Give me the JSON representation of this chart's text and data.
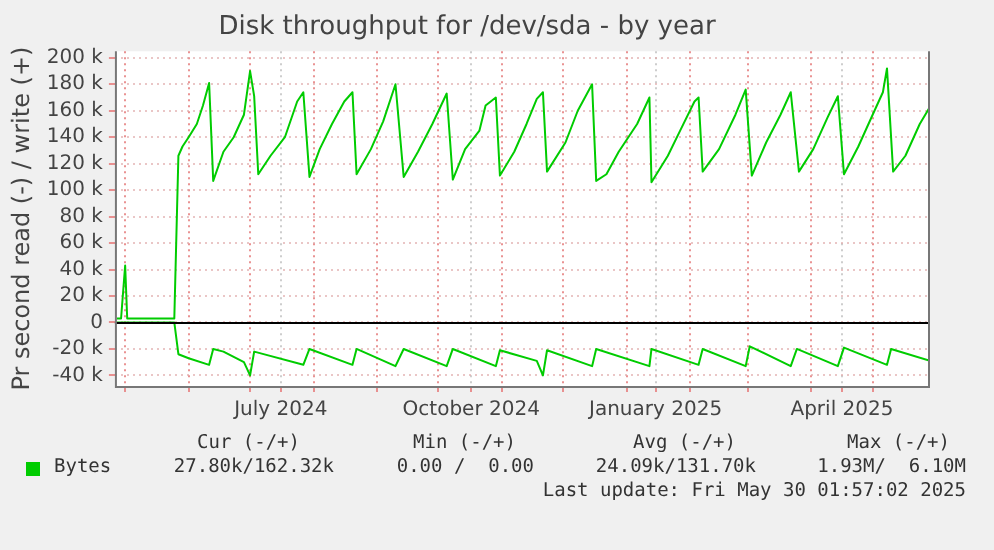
{
  "chart_data": {
    "type": "line",
    "title": "Disk throughput for /dev/sda - by year",
    "ylabel": "Pr second read (-) / write (+)",
    "xlim": [
      "2024-04-26",
      "2025-05-29"
    ],
    "series": [
      {
        "name": "Bytes",
        "color": "#00cc00",
        "x": [
          "2024-04-27",
          "2024-04-29",
          "2024-05-01",
          "2024-05-02",
          "2024-05-25",
          "2024-05-27",
          "2024-05-29",
          "2024-06-01",
          "2024-06-05",
          "2024-06-08",
          "2024-06-11",
          "2024-06-13",
          "2024-06-18",
          "2024-06-23",
          "2024-06-28",
          "2024-07-01",
          "2024-07-03",
          "2024-07-05",
          "2024-07-11",
          "2024-07-18",
          "2024-07-24",
          "2024-07-27",
          "2024-07-30",
          "2024-08-04",
          "2024-08-10",
          "2024-08-16",
          "2024-08-20",
          "2024-08-22",
          "2024-08-29",
          "2024-09-04",
          "2024-09-10",
          "2024-09-14",
          "2024-09-21",
          "2024-09-28",
          "2024-10-05",
          "2024-10-08",
          "2024-10-14",
          "2024-10-21",
          "2024-10-24",
          "2024-10-29",
          "2024-10-31",
          "2024-11-07",
          "2024-11-13",
          "2024-11-18",
          "2024-11-21",
          "2024-11-23",
          "2024-12-02",
          "2024-12-08",
          "2024-12-15",
          "2024-12-17",
          "2024-12-22",
          "2024-12-28",
          "2025-01-06",
          "2025-01-12",
          "2025-01-13",
          "2025-01-21",
          "2025-01-27",
          "2025-02-03",
          "2025-02-05",
          "2025-02-07",
          "2025-02-15",
          "2025-02-23",
          "2025-02-28",
          "2025-03-03",
          "2025-03-10",
          "2025-03-17",
          "2025-03-22",
          "2025-03-26",
          "2025-04-02",
          "2025-04-09",
          "2025-04-14",
          "2025-04-17",
          "2025-04-24",
          "2025-05-01",
          "2025-05-06",
          "2025-05-08",
          "2025-05-11",
          "2025-05-17",
          "2025-05-24",
          "2025-05-29"
        ],
        "values": [
          3000,
          3000,
          43000,
          3000,
          3000,
          126000,
          133000,
          140000,
          150000,
          164000,
          181000,
          107000,
          129000,
          140000,
          157000,
          190000,
          171000,
          112000,
          126000,
          140000,
          167000,
          174000,
          110000,
          131000,
          150000,
          167000,
          174000,
          112000,
          131000,
          152000,
          180000,
          110000,
          129000,
          150000,
          173000,
          108000,
          131000,
          145000,
          164000,
          170000,
          111000,
          129000,
          150000,
          169000,
          174000,
          114000,
          136000,
          160000,
          180000,
          107000,
          112000,
          129000,
          150000,
          170000,
          106000,
          126000,
          145000,
          167000,
          170000,
          114000,
          131000,
          157000,
          176000,
          111000,
          136000,
          157000,
          174000,
          114000,
          131000,
          155000,
          171000,
          112000,
          133000,
          157000,
          174000,
          192000,
          114000,
          126000,
          150000,
          163000
        ]
      },
      {
        "color": "#00cc00",
        "x": [
          "2024-04-27",
          "2024-05-25",
          "2024-05-27",
          "2024-06-01",
          "2024-06-11",
          "2024-06-13",
          "2024-06-18",
          "2024-06-28",
          "2024-07-01",
          "2024-07-03",
          "2024-07-27",
          "2024-07-30",
          "2024-08-20",
          "2024-08-22",
          "2024-09-10",
          "2024-09-14",
          "2024-10-05",
          "2024-10-08",
          "2024-10-29",
          "2024-10-31",
          "2024-11-18",
          "2024-11-21",
          "2024-11-23",
          "2024-12-15",
          "2024-12-17",
          "2025-01-12",
          "2025-01-13",
          "2025-02-05",
          "2025-02-07",
          "2025-02-28",
          "2025-03-02",
          "2025-03-22",
          "2025-03-25",
          "2025-04-14",
          "2025-04-17",
          "2025-05-08",
          "2025-05-10",
          "2025-05-29"
        ],
        "values": [
          0,
          0,
          -24000,
          -27000,
          -32000,
          -20000,
          -22000,
          -30000,
          -40000,
          -22000,
          -32000,
          -20000,
          -32000,
          -20000,
          -33000,
          -20000,
          -33000,
          -20000,
          -33000,
          -21000,
          -29000,
          -40000,
          -21000,
          -33000,
          -20000,
          -33000,
          -20000,
          -32000,
          -20000,
          -33000,
          -18000,
          -33000,
          -20000,
          -33000,
          -19000,
          -32000,
          -20000,
          -29000
        ]
      }
    ],
    "ylim": [
      -48000,
      205000
    ],
    "yticks": [
      {
        "value": -40000,
        "label": "-40 k"
      },
      {
        "value": -20000,
        "label": "-20 k"
      },
      0,
      {
        "value": 20000,
        "label": "20 k"
      },
      {
        "value": 40000,
        "label": "40 k"
      },
      {
        "value": 60000,
        "label": "60 k"
      },
      {
        "value": 80000,
        "label": "80 k"
      },
      {
        "value": 100000,
        "label": "100 k"
      },
      {
        "value": 120000,
        "label": "120 k"
      },
      {
        "value": 140000,
        "label": "140 k"
      },
      {
        "value": 160000,
        "label": "160 k"
      },
      {
        "value": 180000,
        "label": "180 k"
      },
      {
        "value": 200000,
        "label": "200 k"
      }
    ],
    "xticks": [
      {
        "value": "2024-05-01",
        "label": null
      },
      {
        "value": "2024-06-01",
        "label": null
      },
      {
        "value": "2024-07-01",
        "label": null
      },
      {
        "value": "2024-07-16",
        "label": "July 2024"
      },
      {
        "value": "2024-08-01",
        "label": null
      },
      {
        "value": "2024-09-01",
        "label": null
      },
      {
        "value": "2024-10-01",
        "label": null
      },
      {
        "value": "2024-10-17",
        "label": "October 2024"
      },
      {
        "value": "2024-11-01",
        "label": null
      },
      {
        "value": "2024-12-01",
        "label": null
      },
      {
        "value": "2025-01-01",
        "label": null
      },
      {
        "value": "2025-01-15",
        "label": "January 2025"
      },
      {
        "value": "2025-02-01",
        "label": null
      },
      {
        "value": "2025-03-01",
        "label": null
      },
      {
        "value": "2025-04-01",
        "label": null
      },
      {
        "value": "2025-04-16",
        "label": "April 2025"
      },
      {
        "value": "2025-05-01",
        "label": null
      }
    ],
    "ref_lines": [
      {
        "axis": "y",
        "value": 0,
        "color": "#000000"
      }
    ],
    "grid": true,
    "legend": "bottom",
    "marker": "none",
    "line_style": "solid",
    "annotations": [
      "Cur (-/+)",
      "Min (-/+)",
      "Avg (-/+)",
      "Max (-/+)",
      "27.80k/162.32k",
      "0.00 /  0.00",
      "24.09k/131.70k",
      "1.93M/  6.10M",
      "Last update: Fri May 30 01:57:02 2025"
    ]
  }
}
